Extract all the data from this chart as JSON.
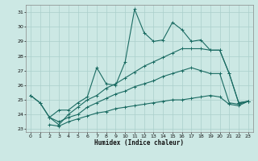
{
  "xlabel": "Humidex (Indice chaleur)",
  "bg_color": "#cce8e4",
  "grid_color": "#aacfcb",
  "line_color": "#1a6b62",
  "xlim": [
    -0.5,
    23.5
  ],
  "ylim": [
    22.8,
    31.5
  ],
  "xticks": [
    0,
    1,
    2,
    3,
    4,
    5,
    6,
    7,
    8,
    9,
    10,
    11,
    12,
    13,
    14,
    15,
    16,
    17,
    18,
    19,
    20,
    21,
    22,
    23
  ],
  "yticks": [
    23,
    24,
    25,
    26,
    27,
    28,
    29,
    30,
    31
  ],
  "lines": [
    {
      "x": [
        0,
        1,
        2,
        3,
        4,
        5,
        6,
        7,
        8,
        9,
        10,
        11,
        12,
        13,
        14,
        15,
        16,
        17,
        18,
        19,
        20,
        21,
        22,
        23
      ],
      "y": [
        25.3,
        24.8,
        23.8,
        24.3,
        24.3,
        24.8,
        25.2,
        27.2,
        26.1,
        26.0,
        27.6,
        31.2,
        29.6,
        29.0,
        29.1,
        30.3,
        29.8,
        29.0,
        29.1,
        28.4,
        28.4,
        26.8,
        24.8,
        24.9
      ]
    },
    {
      "x": [
        0,
        1,
        2,
        3,
        4,
        5,
        6,
        7,
        8,
        9,
        10,
        11,
        12,
        13,
        14,
        15,
        16,
        17,
        18,
        19,
        20,
        21,
        22,
        23
      ],
      "y": [
        25.3,
        24.8,
        23.8,
        23.3,
        24.0,
        24.5,
        25.0,
        25.3,
        25.8,
        26.1,
        26.5,
        26.9,
        27.3,
        27.6,
        27.9,
        28.2,
        28.5,
        28.5,
        28.5,
        28.4,
        28.4,
        26.8,
        24.8,
        24.9
      ]
    },
    {
      "x": [
        2,
        3,
        4,
        5,
        6,
        7,
        8,
        9,
        10,
        11,
        12,
        13,
        14,
        15,
        16,
        17,
        18,
        19,
        20,
        21,
        22,
        23
      ],
      "y": [
        23.8,
        23.5,
        23.8,
        24.0,
        24.5,
        24.8,
        25.1,
        25.4,
        25.6,
        25.9,
        26.1,
        26.3,
        26.6,
        26.8,
        27.0,
        27.2,
        27.0,
        26.8,
        26.8,
        24.8,
        24.7,
        24.9
      ]
    },
    {
      "x": [
        2,
        3,
        4,
        5,
        6,
        7,
        8,
        9,
        10,
        11,
        12,
        13,
        14,
        15,
        16,
        17,
        18,
        19,
        20,
        21,
        22,
        23
      ],
      "y": [
        23.3,
        23.2,
        23.5,
        23.7,
        23.9,
        24.1,
        24.2,
        24.4,
        24.5,
        24.6,
        24.7,
        24.8,
        24.9,
        25.0,
        25.0,
        25.1,
        25.2,
        25.3,
        25.2,
        24.7,
        24.6,
        24.9
      ]
    }
  ]
}
